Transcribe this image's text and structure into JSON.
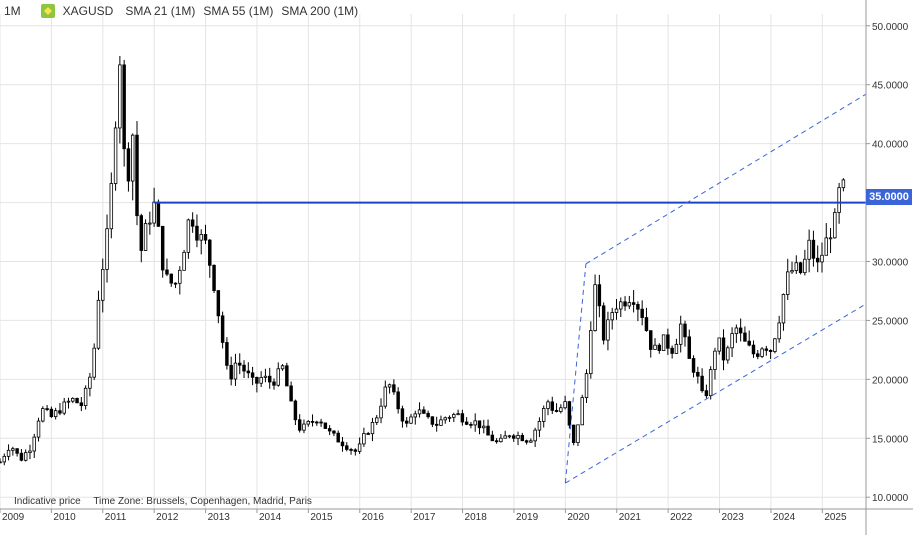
{
  "header": {
    "timeframe": "1M",
    "symbol": "XAGUSD",
    "sma": [
      "SMA 21 (1M)",
      "SMA 55 (1M)",
      "SMA 200 (1M)"
    ]
  },
  "footer": {
    "note": "Indicative price",
    "timezone": "Time Zone: Brussels, Copenhagen, Madrid, Paris"
  },
  "price_tag": "35.0000",
  "colors": {
    "bull": "#ffffff",
    "bear": "#000000",
    "level_line": "#1a44c8",
    "channel": "#3b64d9",
    "price_tag_bg": "#3b64d9",
    "grid": "#e4e4e4"
  },
  "chart_data": {
    "type": "candlestick",
    "title": "",
    "xlabel": "",
    "ylabel": "",
    "ylim": [
      9,
      51
    ],
    "xlim": [
      2009.0,
      2025.85
    ],
    "y_ticks": [
      "10.0000",
      "15.0000",
      "20.0000",
      "25.0000",
      "30.0000",
      "35.0000",
      "40.0000",
      "45.0000",
      "50.0000"
    ],
    "x_ticks": [
      "2009",
      "2010",
      "2011",
      "2012",
      "2013",
      "2014",
      "2015",
      "2016",
      "2017",
      "2018",
      "2019",
      "2020",
      "2021",
      "2022",
      "2023",
      "2024",
      "2025"
    ],
    "horizontal_level": {
      "value": 35.0,
      "from": 2012.0
    },
    "channel_upper": {
      "start": [
        2020.4,
        29.8
      ],
      "end": [
        2025.85,
        44.2
      ]
    },
    "channel_lower": {
      "start": [
        2020.0,
        11.2
      ],
      "end": [
        2025.85,
        26.4
      ]
    },
    "close_path": [
      [
        2009.0,
        13.0
      ],
      [
        2009.2,
        14.5
      ],
      [
        2009.4,
        13.2
      ],
      [
        2009.6,
        14.3
      ],
      [
        2009.8,
        17.5
      ],
      [
        2010.0,
        16.8
      ],
      [
        2010.2,
        17.6
      ],
      [
        2010.4,
        18.3
      ],
      [
        2010.6,
        17.8
      ],
      [
        2010.8,
        21.0
      ],
      [
        2010.95,
        28.8
      ],
      [
        2011.05,
        30.5
      ],
      [
        2011.2,
        37.9
      ],
      [
        2011.32,
        48.5
      ],
      [
        2011.45,
        35.8
      ],
      [
        2011.6,
        41.5
      ],
      [
        2011.7,
        30.0
      ],
      [
        2011.85,
        33.0
      ],
      [
        2012.0,
        34.8
      ],
      [
        2012.1,
        32.0
      ],
      [
        2012.2,
        28.7
      ],
      [
        2012.4,
        27.9
      ],
      [
        2012.55,
        30.5
      ],
      [
        2012.7,
        34.2
      ],
      [
        2012.85,
        32.3
      ],
      [
        2013.0,
        31.5
      ],
      [
        2013.15,
        28.5
      ],
      [
        2013.3,
        24.1
      ],
      [
        2013.45,
        19.8
      ],
      [
        2013.6,
        21.6
      ],
      [
        2013.8,
        20.5
      ],
      [
        2013.95,
        19.5
      ],
      [
        2014.1,
        20.2
      ],
      [
        2014.3,
        19.7
      ],
      [
        2014.5,
        21.0
      ],
      [
        2014.7,
        17.1
      ],
      [
        2014.85,
        15.7
      ],
      [
        2015.0,
        16.2
      ],
      [
        2015.2,
        16.8
      ],
      [
        2015.4,
        15.5
      ],
      [
        2015.6,
        14.8
      ],
      [
        2015.8,
        14.2
      ],
      [
        2015.95,
        13.8
      ],
      [
        2016.1,
        15.3
      ],
      [
        2016.3,
        16.5
      ],
      [
        2016.55,
        19.8
      ],
      [
        2016.75,
        17.6
      ],
      [
        2016.9,
        16.0
      ],
      [
        2017.1,
        17.5
      ],
      [
        2017.3,
        16.6
      ],
      [
        2017.5,
        16.2
      ],
      [
        2017.7,
        16.9
      ],
      [
        2017.9,
        17.0
      ],
      [
        2018.1,
        16.5
      ],
      [
        2018.3,
        16.3
      ],
      [
        2018.5,
        15.2
      ],
      [
        2018.7,
        14.5
      ],
      [
        2018.9,
        15.4
      ],
      [
        2019.1,
        15.2
      ],
      [
        2019.3,
        14.8
      ],
      [
        2019.5,
        16.5
      ],
      [
        2019.65,
        18.2
      ],
      [
        2019.8,
        17.2
      ],
      [
        2020.0,
        17.9
      ],
      [
        2020.15,
        14.2
      ],
      [
        2020.3,
        17.5
      ],
      [
        2020.45,
        21.5
      ],
      [
        2020.55,
        28.5
      ],
      [
        2020.75,
        23.5
      ],
      [
        2020.95,
        26.3
      ],
      [
        2021.1,
        26.5
      ],
      [
        2021.3,
        27.2
      ],
      [
        2021.5,
        25.5
      ],
      [
        2021.7,
        22.3
      ],
      [
        2021.9,
        23.3
      ],
      [
        2022.1,
        22.5
      ],
      [
        2022.25,
        24.7
      ],
      [
        2022.4,
        21.7
      ],
      [
        2022.55,
        20.5
      ],
      [
        2022.7,
        18.0
      ],
      [
        2022.85,
        21.0
      ],
      [
        2022.95,
        23.7
      ],
      [
        2023.1,
        21.5
      ],
      [
        2023.3,
        24.5
      ],
      [
        2023.5,
        23.0
      ],
      [
        2023.7,
        22.0
      ],
      [
        2023.85,
        23.0
      ],
      [
        2024.0,
        22.5
      ],
      [
        2024.15,
        25.0
      ],
      [
        2024.3,
        28.5
      ],
      [
        2024.45,
        29.5
      ],
      [
        2024.6,
        29.0
      ],
      [
        2024.75,
        31.5
      ],
      [
        2024.9,
        29.5
      ],
      [
        2025.1,
        32.0
      ],
      [
        2025.25,
        33.5
      ],
      [
        2025.35,
        36.5
      ],
      [
        2025.42,
        36.2
      ]
    ],
    "candle_interval_years": 0.0833
  }
}
